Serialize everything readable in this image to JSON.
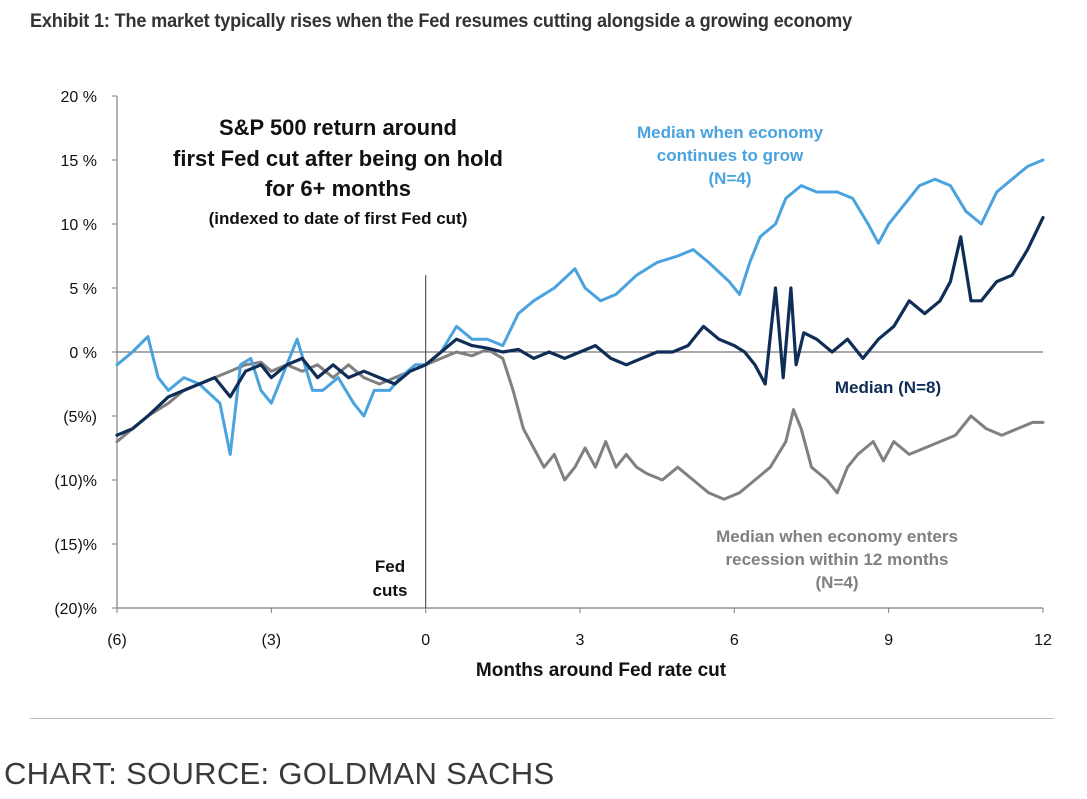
{
  "exhibit_title": "Exhibit 1: The market typically rises when the Fed resumes cutting alongside a growing economy",
  "source": "CHART: SOURCE: GOLDMAN SACHS",
  "colors": {
    "growth": "#4aa3df",
    "median": "#0f2d56",
    "recession": "#808080",
    "axis": "#7f7f7f",
    "zero_line": "#555555"
  },
  "chart_data": {
    "type": "line",
    "title": [
      "S&P 500 return around",
      "first Fed cut after being on hold",
      "for 6+ months"
    ],
    "subtitle": "(indexed to date of first Fed cut)",
    "xlabel": "Months around Fed rate cut",
    "ylabel": "",
    "xlim": [
      -6,
      12
    ],
    "ylim": [
      -20,
      20
    ],
    "x_ticks": [
      -6,
      -3,
      0,
      3,
      6,
      9,
      12
    ],
    "x_tick_labels": [
      "(6)",
      "(3)",
      "0",
      "3",
      "6",
      "9",
      "12"
    ],
    "y_ticks": [
      20,
      15,
      10,
      5,
      0,
      -5,
      -10,
      -15,
      -20
    ],
    "y_tick_labels": [
      "20 %",
      "15 %",
      "10 %",
      "5 %",
      "0 %",
      "(5%)",
      "(10)%",
      "(15)%",
      "(20)%"
    ],
    "grid": false,
    "event_marker": {
      "x": 0,
      "label": [
        "Fed",
        "cuts"
      ]
    },
    "series": [
      {
        "name": "Median when economy continues to grow (N=4)",
        "label_lines": [
          "Median when economy",
          "continues to grow",
          "(N=4)"
        ],
        "color": "#4aa3df",
        "points": [
          [
            -6,
            -1
          ],
          [
            -5.7,
            0
          ],
          [
            -5.4,
            1.2
          ],
          [
            -5.2,
            -2
          ],
          [
            -5,
            -3
          ],
          [
            -4.7,
            -2
          ],
          [
            -4.4,
            -2.5
          ],
          [
            -4,
            -4
          ],
          [
            -3.8,
            -8
          ],
          [
            -3.6,
            -1
          ],
          [
            -3.4,
            -0.5
          ],
          [
            -3.2,
            -3
          ],
          [
            -3,
            -4
          ],
          [
            -2.7,
            -1
          ],
          [
            -2.5,
            1
          ],
          [
            -2.2,
            -3
          ],
          [
            -2,
            -3
          ],
          [
            -1.7,
            -2
          ],
          [
            -1.4,
            -4
          ],
          [
            -1.2,
            -5
          ],
          [
            -1,
            -3
          ],
          [
            -0.7,
            -3
          ],
          [
            -0.5,
            -2
          ],
          [
            -0.2,
            -1
          ],
          [
            0,
            -1
          ],
          [
            0.3,
            0
          ],
          [
            0.6,
            2
          ],
          [
            0.9,
            1
          ],
          [
            1.2,
            1
          ],
          [
            1.5,
            0.5
          ],
          [
            1.8,
            3
          ],
          [
            2.1,
            4
          ],
          [
            2.5,
            5
          ],
          [
            2.9,
            6.5
          ],
          [
            3.1,
            5
          ],
          [
            3.4,
            4
          ],
          [
            3.7,
            4.5
          ],
          [
            4.1,
            6
          ],
          [
            4.5,
            7
          ],
          [
            4.9,
            7.5
          ],
          [
            5.2,
            8
          ],
          [
            5.5,
            7
          ],
          [
            5.9,
            5.5
          ],
          [
            6.1,
            4.5
          ],
          [
            6.3,
            7
          ],
          [
            6.5,
            9
          ],
          [
            6.8,
            10
          ],
          [
            7,
            12
          ],
          [
            7.3,
            13
          ],
          [
            7.6,
            12.5
          ],
          [
            8,
            12.5
          ],
          [
            8.3,
            12
          ],
          [
            8.6,
            10
          ],
          [
            8.8,
            8.5
          ],
          [
            9,
            10
          ],
          [
            9.3,
            11.5
          ],
          [
            9.6,
            13
          ],
          [
            9.9,
            13.5
          ],
          [
            10.2,
            13
          ],
          [
            10.5,
            11
          ],
          [
            10.8,
            10
          ],
          [
            11.1,
            12.5
          ],
          [
            11.4,
            13.5
          ],
          [
            11.7,
            14.5
          ],
          [
            12,
            15
          ]
        ]
      },
      {
        "name": "Median (N=8)",
        "label_lines": [
          "Median (N=8)"
        ],
        "color": "#0f2d56",
        "points": [
          [
            -6,
            -6.5
          ],
          [
            -5.7,
            -6
          ],
          [
            -5.4,
            -5
          ],
          [
            -5,
            -3.5
          ],
          [
            -4.7,
            -3
          ],
          [
            -4.4,
            -2.5
          ],
          [
            -4.1,
            -2
          ],
          [
            -3.8,
            -3.5
          ],
          [
            -3.5,
            -1.5
          ],
          [
            -3.2,
            -1
          ],
          [
            -3,
            -2
          ],
          [
            -2.7,
            -1
          ],
          [
            -2.4,
            -0.5
          ],
          [
            -2.1,
            -2
          ],
          [
            -1.8,
            -1
          ],
          [
            -1.5,
            -2
          ],
          [
            -1.2,
            -1.5
          ],
          [
            -0.9,
            -2
          ],
          [
            -0.6,
            -2.5
          ],
          [
            -0.3,
            -1.5
          ],
          [
            0,
            -1
          ],
          [
            0.3,
            0
          ],
          [
            0.6,
            1
          ],
          [
            0.9,
            0.5
          ],
          [
            1.2,
            0.3
          ],
          [
            1.5,
            0
          ],
          [
            1.8,
            0.2
          ],
          [
            2.1,
            -0.5
          ],
          [
            2.4,
            0
          ],
          [
            2.7,
            -0.5
          ],
          [
            3,
            0
          ],
          [
            3.3,
            0.5
          ],
          [
            3.6,
            -0.5
          ],
          [
            3.9,
            -1
          ],
          [
            4.2,
            -0.5
          ],
          [
            4.5,
            0
          ],
          [
            4.8,
            0
          ],
          [
            5.1,
            0.5
          ],
          [
            5.4,
            2
          ],
          [
            5.7,
            1
          ],
          [
            6,
            0.5
          ],
          [
            6.2,
            0
          ],
          [
            6.4,
            -1
          ],
          [
            6.6,
            -2.5
          ],
          [
            6.8,
            5
          ],
          [
            6.95,
            -2
          ],
          [
            7.1,
            5
          ],
          [
            7.2,
            -1
          ],
          [
            7.35,
            1.5
          ],
          [
            7.6,
            1
          ],
          [
            7.9,
            0
          ],
          [
            8.2,
            1
          ],
          [
            8.5,
            -0.5
          ],
          [
            8.8,
            1
          ],
          [
            9.1,
            2
          ],
          [
            9.4,
            4
          ],
          [
            9.7,
            3
          ],
          [
            10,
            4
          ],
          [
            10.2,
            5.5
          ],
          [
            10.4,
            9
          ],
          [
            10.6,
            4
          ],
          [
            10.8,
            4
          ],
          [
            11.1,
            5.5
          ],
          [
            11.4,
            6
          ],
          [
            11.7,
            8
          ],
          [
            12,
            10.5
          ]
        ]
      },
      {
        "name": "Median when economy enters recession within 12 months (N=4)",
        "label_lines": [
          "Median when economy enters",
          "recession within 12 months",
          "(N=4)"
        ],
        "color": "#808080",
        "points": [
          [
            -6,
            -7
          ],
          [
            -5.7,
            -6
          ],
          [
            -5.4,
            -5
          ],
          [
            -5,
            -4
          ],
          [
            -4.7,
            -3
          ],
          [
            -4.4,
            -2.5
          ],
          [
            -4.1,
            -2
          ],
          [
            -3.8,
            -1.5
          ],
          [
            -3.5,
            -1
          ],
          [
            -3.2,
            -0.8
          ],
          [
            -3,
            -1.5
          ],
          [
            -2.7,
            -1
          ],
          [
            -2.4,
            -1.5
          ],
          [
            -2.1,
            -1
          ],
          [
            -1.8,
            -2
          ],
          [
            -1.5,
            -1
          ],
          [
            -1.2,
            -2
          ],
          [
            -0.9,
            -2.5
          ],
          [
            -0.6,
            -2
          ],
          [
            -0.3,
            -1.5
          ],
          [
            0,
            -1
          ],
          [
            0.3,
            -0.5
          ],
          [
            0.6,
            0
          ],
          [
            0.9,
            -0.3
          ],
          [
            1.2,
            0.2
          ],
          [
            1.5,
            -0.5
          ],
          [
            1.7,
            -3
          ],
          [
            1.9,
            -6
          ],
          [
            2.1,
            -7.5
          ],
          [
            2.3,
            -9
          ],
          [
            2.5,
            -8
          ],
          [
            2.7,
            -10
          ],
          [
            2.9,
            -9
          ],
          [
            3.1,
            -7.5
          ],
          [
            3.3,
            -9
          ],
          [
            3.5,
            -7
          ],
          [
            3.7,
            -9
          ],
          [
            3.9,
            -8
          ],
          [
            4.1,
            -9
          ],
          [
            4.3,
            -9.5
          ],
          [
            4.6,
            -10
          ],
          [
            4.9,
            -9
          ],
          [
            5.2,
            -10
          ],
          [
            5.5,
            -11
          ],
          [
            5.8,
            -11.5
          ],
          [
            6.1,
            -11
          ],
          [
            6.4,
            -10
          ],
          [
            6.7,
            -9
          ],
          [
            7,
            -7
          ],
          [
            7.15,
            -4.5
          ],
          [
            7.3,
            -6
          ],
          [
            7.5,
            -9
          ],
          [
            7.8,
            -10
          ],
          [
            8,
            -11
          ],
          [
            8.2,
            -9
          ],
          [
            8.4,
            -8
          ],
          [
            8.7,
            -7
          ],
          [
            8.9,
            -8.5
          ],
          [
            9.1,
            -7
          ],
          [
            9.4,
            -8
          ],
          [
            9.7,
            -7.5
          ],
          [
            10,
            -7
          ],
          [
            10.3,
            -6.5
          ],
          [
            10.6,
            -5
          ],
          [
            10.9,
            -6
          ],
          [
            11.2,
            -6.5
          ],
          [
            11.5,
            -6
          ],
          [
            11.8,
            -5.5
          ],
          [
            12,
            -5.5
          ]
        ]
      }
    ]
  }
}
